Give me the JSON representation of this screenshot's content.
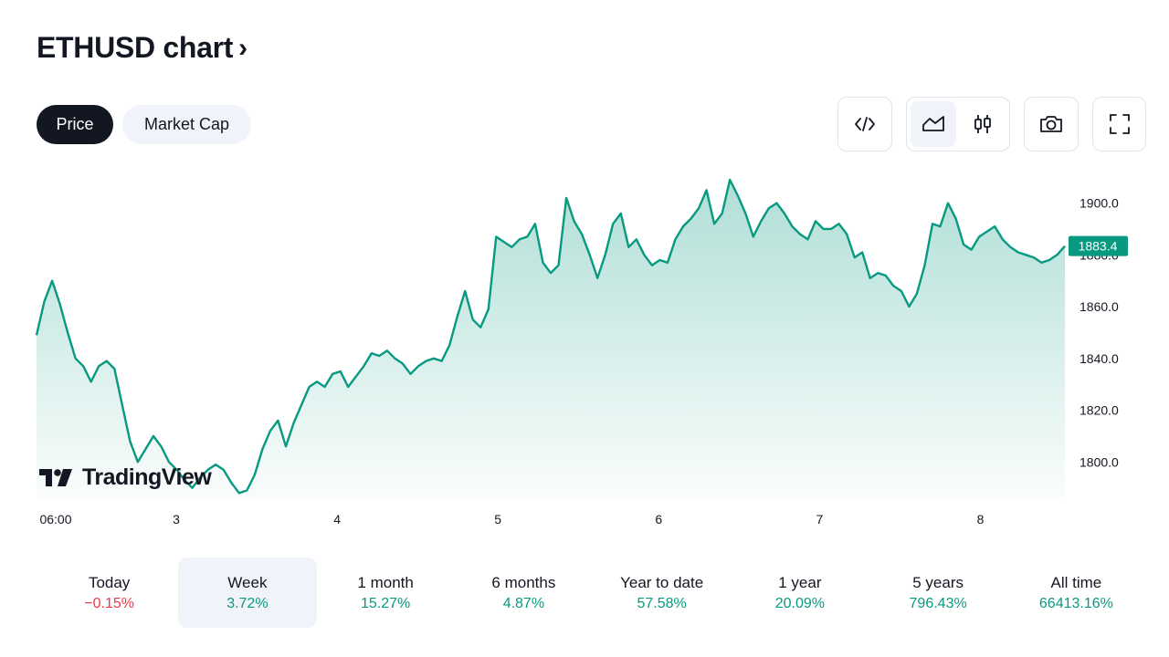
{
  "header": {
    "title": "ETHUSD chart",
    "chevron": "›"
  },
  "tabs": [
    {
      "label": "Price",
      "active": true
    },
    {
      "label": "Market Cap",
      "active": false
    }
  ],
  "toolbar": {
    "embed_icon": "code-brackets-icon",
    "area_icon": "area-chart-icon",
    "candle_icon": "candlestick-icon",
    "camera_icon": "camera-icon",
    "fullscreen_icon": "fullscreen-icon"
  },
  "watermark": {
    "text": "TradingView"
  },
  "colors": {
    "line": "#089981",
    "up": "#089981",
    "down": "#f23645",
    "dark": "#131722",
    "light_bg": "#f0f3fa"
  },
  "chart_data": {
    "type": "area",
    "series_name": "ETHUSD",
    "x_labels": [
      "06:00",
      "3",
      "4",
      "5",
      "6",
      "7",
      "8"
    ],
    "y_ticks": [
      "1800.0",
      "1820.0",
      "1840.0",
      "1860.0",
      "1880.0",
      "1900.0"
    ],
    "ylim": [
      1786,
      1915
    ],
    "last_price": "1883.4",
    "grid": false,
    "values": [
      1849,
      1862,
      1870,
      1861,
      1850,
      1840,
      1837,
      1831,
      1837,
      1839,
      1836,
      1822,
      1808,
      1800,
      1805,
      1810,
      1806,
      1800,
      1797,
      1793,
      1790,
      1794,
      1797,
      1799,
      1797,
      1792,
      1788,
      1789,
      1795,
      1805,
      1812,
      1816,
      1806,
      1815,
      1822,
      1829,
      1831,
      1829,
      1834,
      1835,
      1829,
      1833,
      1837,
      1842,
      1841,
      1843,
      1840,
      1838,
      1834,
      1837,
      1839,
      1840,
      1839,
      1845,
      1856,
      1866,
      1855,
      1852,
      1859,
      1887,
      1885,
      1883,
      1886,
      1887,
      1892,
      1877,
      1873,
      1876,
      1902,
      1893,
      1888,
      1880,
      1871,
      1880,
      1892,
      1896,
      1883,
      1886,
      1880,
      1876,
      1878,
      1877,
      1886,
      1891,
      1894,
      1898,
      1905,
      1892,
      1896,
      1909,
      1903,
      1896,
      1887,
      1893,
      1898,
      1900,
      1896,
      1891,
      1888,
      1886,
      1893,
      1890,
      1890,
      1892,
      1888,
      1879,
      1881,
      1871,
      1873,
      1872,
      1868,
      1866,
      1860,
      1865,
      1876,
      1892,
      1891,
      1900,
      1894,
      1884,
      1882,
      1887,
      1889,
      1891,
      1886,
      1883,
      1881,
      1880,
      1879,
      1877,
      1878,
      1880,
      1883.4
    ]
  },
  "periods": [
    {
      "label": "Today",
      "value": "−0.15%",
      "dir": "down",
      "active": false
    },
    {
      "label": "Week",
      "value": "3.72%",
      "dir": "up",
      "active": true
    },
    {
      "label": "1 month",
      "value": "15.27%",
      "dir": "up",
      "active": false
    },
    {
      "label": "6 months",
      "value": "4.87%",
      "dir": "up",
      "active": false
    },
    {
      "label": "Year to date",
      "value": "57.58%",
      "dir": "up",
      "active": false
    },
    {
      "label": "1 year",
      "value": "20.09%",
      "dir": "up",
      "active": false
    },
    {
      "label": "5 years",
      "value": "796.43%",
      "dir": "up",
      "active": false
    },
    {
      "label": "All time",
      "value": "66413.16%",
      "dir": "up",
      "active": false
    }
  ]
}
